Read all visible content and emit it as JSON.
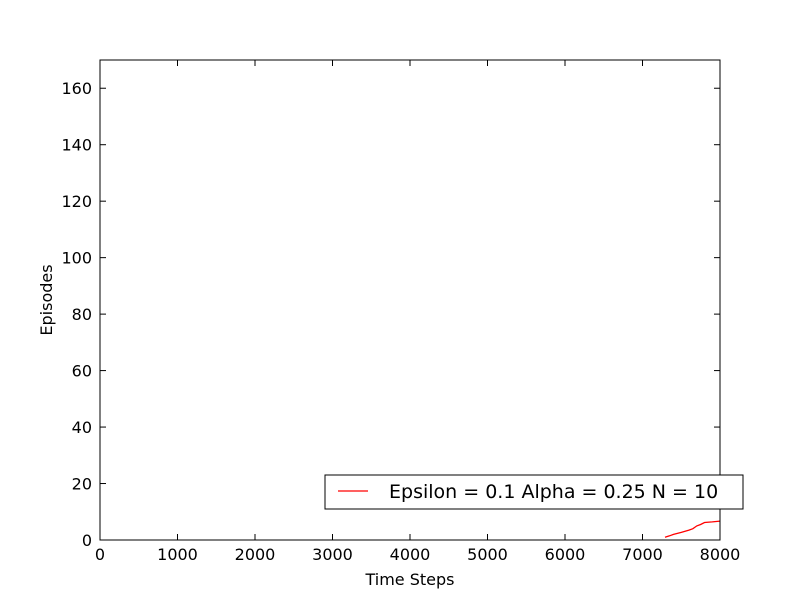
{
  "chart_data": {
    "type": "line",
    "title": "",
    "xlabel": "Time Steps",
    "ylabel": "Episodes",
    "xlim": [
      0,
      8000
    ],
    "ylim": [
      0,
      170
    ],
    "xticks": [
      0,
      1000,
      2000,
      3000,
      4000,
      5000,
      6000,
      7000,
      8000
    ],
    "yticks": [
      0,
      20,
      40,
      60,
      80,
      100,
      120,
      140,
      160
    ],
    "grid": false,
    "legend_position": "lower-right",
    "series": [
      {
        "name": "Epsilon = 0.1 Alpha = 0.25 N = 10",
        "color": "#ff0000",
        "x": [
          7290,
          7350,
          7400,
          7500,
          7600,
          7650,
          7700,
          7750,
          7800,
          7900,
          8000
        ],
        "y": [
          1,
          1.5,
          2,
          2.7,
          3.5,
          4,
          5,
          5.5,
          6.2,
          6.4,
          6.7
        ]
      }
    ]
  }
}
